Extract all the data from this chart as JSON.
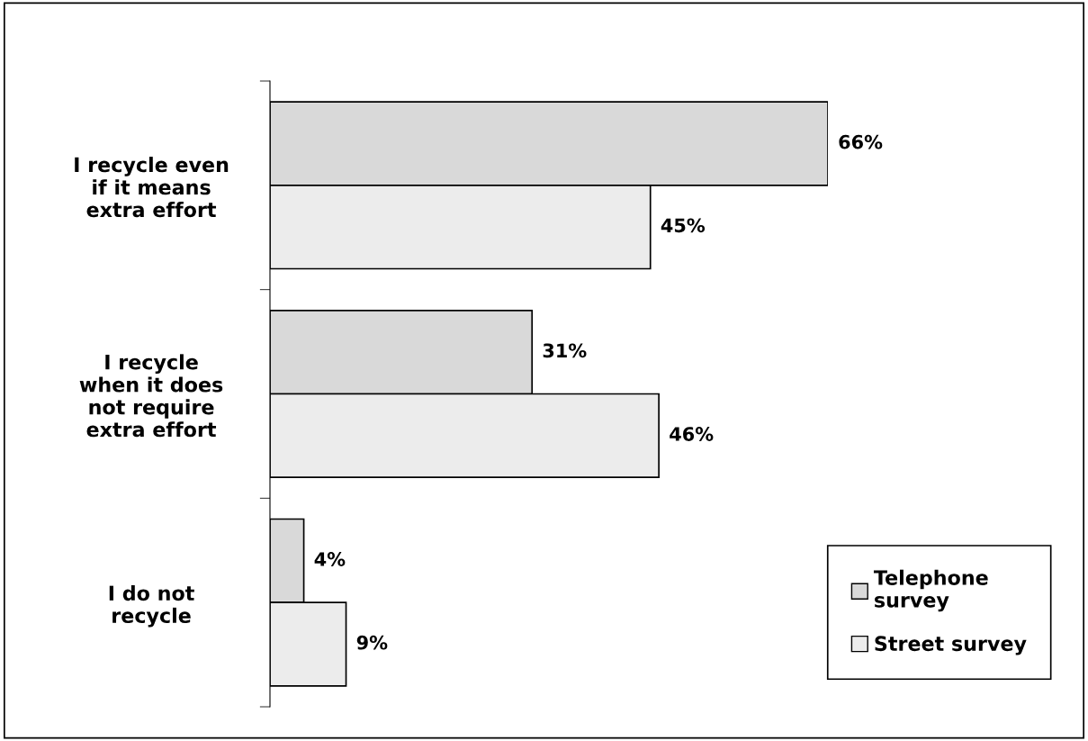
{
  "chart_data": {
    "type": "bar",
    "orientation": "horizontal",
    "categories": [
      "I recycle even\nif it means\nextra effort",
      "I recycle\nwhen it does\nnot require\nextra effort",
      "I do not\nrecycle"
    ],
    "series": [
      {
        "name": "Telephone\nsurvey",
        "color": "#d9d9d9",
        "values": [
          66,
          31,
          4
        ],
        "value_labels": [
          "66%",
          "31%",
          "4%"
        ]
      },
      {
        "name": "Street survey",
        "color": "#ececec",
        "values": [
          45,
          46,
          9
        ],
        "value_labels": [
          "45%",
          "46%",
          "9%"
        ]
      }
    ],
    "tick_labels": "y",
    "grid": false,
    "legend": "bottom right"
  }
}
